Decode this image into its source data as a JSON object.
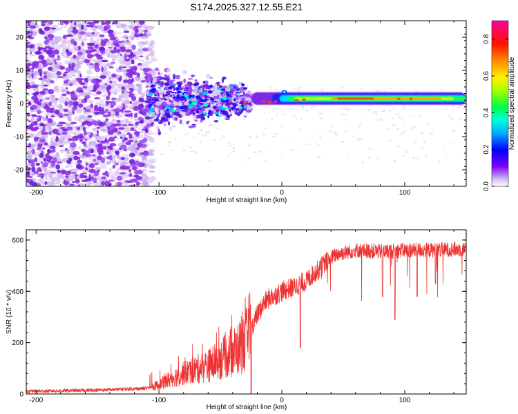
{
  "title": "S174.2025.327.12.55.E21",
  "chart_data": [
    {
      "type": "heatmap",
      "xlabel": "Height of straight line (km)",
      "ylabel": "Frequency (Hz)",
      "xlim": [
        -208,
        150
      ],
      "ylim": [
        -25,
        25
      ],
      "xticks": [
        -200,
        -100,
        0,
        100
      ],
      "xtick_labels": [
        "-200",
        "-100",
        "0",
        "100"
      ],
      "yticks": [
        -20,
        -10,
        0,
        10,
        20
      ],
      "ytick_labels": [
        "-20",
        "-10",
        "0",
        "10",
        "20"
      ],
      "colorbar": {
        "label": "Normalized spectral amplitude",
        "range": [
          0.0,
          0.9
        ],
        "ticks": [
          0.0,
          0.2,
          0.4,
          0.6,
          0.8
        ],
        "tick_labels": [
          "0.0",
          "0.2",
          "0.4",
          "0.6",
          "0.8"
        ],
        "colormap": "rainbow"
      },
      "features": {
        "noise_region_x": [
          -208,
          -110
        ],
        "transition_region_x": [
          -110,
          -25
        ],
        "signal_band_x": [
          0,
          150
        ],
        "signal_band_freq": 1.5,
        "signal_peak_x": [
          45,
          75
        ],
        "peak_amplitude": 0.9
      }
    },
    {
      "type": "line",
      "xlabel": "Height of straight line (km)",
      "ylabel": "SNR (10 * v/v)",
      "xlim": [
        -208,
        150
      ],
      "ylim": [
        0,
        640
      ],
      "xticks": [
        -200,
        -100,
        0,
        100
      ],
      "xtick_labels": [
        "-200",
        "-100",
        "0",
        "100"
      ],
      "yticks": [
        0,
        200,
        400,
        600
      ],
      "ytick_labels": [
        "0",
        "200",
        "400",
        "600"
      ],
      "color": "#ee3333",
      "trend_x": [
        -208,
        -150,
        -110,
        -100,
        -90,
        -80,
        -70,
        -60,
        -50,
        -40,
        -30,
        -25,
        -20,
        -15,
        -10,
        -5,
        0,
        5,
        10,
        15,
        20,
        25,
        30,
        35,
        40,
        45,
        50,
        60,
        80,
        100,
        120,
        150
      ],
      "trend_y": [
        10,
        15,
        22,
        35,
        60,
        80,
        95,
        110,
        135,
        160,
        200,
        255,
        310,
        350,
        375,
        385,
        400,
        410,
        415,
        430,
        440,
        465,
        485,
        510,
        530,
        545,
        550,
        560,
        555,
        560,
        560,
        565
      ],
      "dips": [
        [
          -25,
          0
        ],
        [
          15,
          180
        ],
        [
          92,
          290
        ],
        [
          82,
          380
        ],
        [
          110,
          380
        ],
        [
          125,
          430
        ]
      ]
    }
  ]
}
